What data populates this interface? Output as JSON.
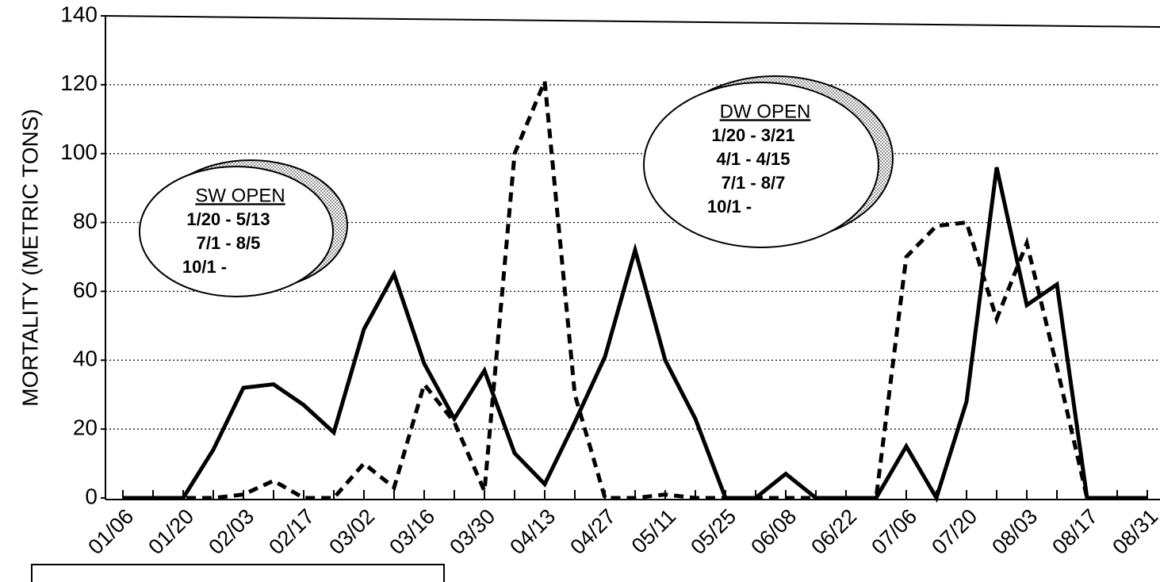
{
  "chart_data": {
    "type": "line",
    "ylabel": "MORTALITY  (METRIC TONS)",
    "categories": [
      "01/06",
      null,
      "01/20",
      null,
      "02/03",
      null,
      "02/17",
      null,
      "03/02",
      null,
      "03/16",
      null,
      "03/30",
      null,
      "04/13",
      null,
      "04/27",
      null,
      "05/11",
      null,
      "05/25",
      null,
      "06/08",
      null,
      "06/22",
      null,
      "07/06",
      null,
      "07/20",
      null,
      "08/03",
      null,
      "08/17",
      null,
      "08/31"
    ],
    "series": [
      {
        "color": "#000000",
        "style": "solid",
        "values": [
          0,
          0,
          0,
          14,
          32,
          33,
          27,
          19,
          49,
          65,
          39,
          23,
          37,
          13,
          4,
          22,
          41,
          72,
          40,
          23,
          0,
          0,
          7,
          0,
          0,
          0,
          15,
          0,
          28,
          96,
          56,
          62,
          0,
          0,
          0
        ]
      },
      {
        "color": "#000000",
        "style": "dashed",
        "values": [
          0,
          0,
          0,
          0,
          1,
          5,
          0,
          0,
          10,
          3,
          33,
          22,
          2,
          100,
          121,
          30,
          0,
          0,
          1,
          0,
          0,
          0,
          0,
          0,
          0,
          0,
          70,
          79,
          80,
          52,
          74,
          38,
          0,
          0,
          0
        ]
      }
    ],
    "ylim": [
      0,
      140
    ],
    "yticks": [
      0,
      20,
      40,
      60,
      80,
      100,
      120,
      140
    ],
    "grid": true,
    "annotations": [
      {
        "title": "SW OPEN",
        "lines": [
          "1/20 - 5/13",
          "7/1 - 8/5",
          "10/1 -"
        ]
      },
      {
        "title": "DW OPEN",
        "lines": [
          "1/20 - 3/21",
          "4/1 - 4/15",
          "7/1 - 8/7",
          "10/1 -"
        ]
      }
    ]
  }
}
